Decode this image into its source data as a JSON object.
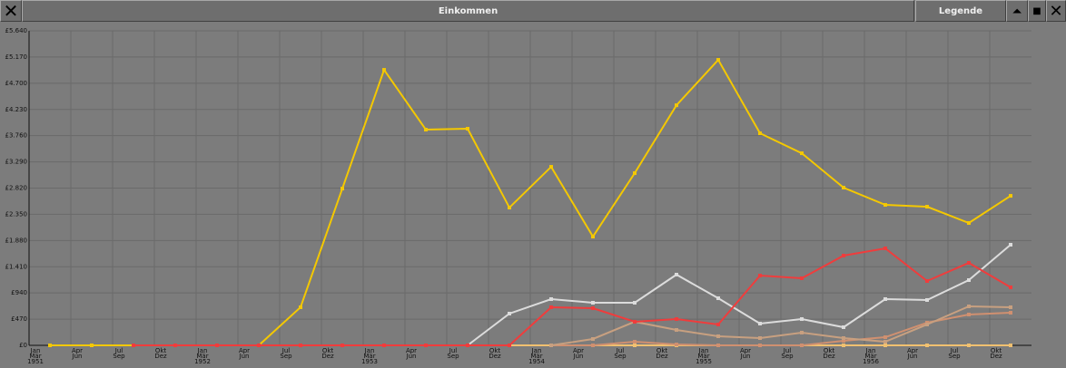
{
  "window": {
    "title": "Einkommen",
    "legend_button": "Legende"
  },
  "chart_data": {
    "type": "line",
    "categories": [
      [
        "Jan",
        "Mär",
        "1951"
      ],
      [
        "Apr",
        "Jun"
      ],
      [
        "Jul",
        "Sep"
      ],
      [
        "Okt",
        "Dez"
      ],
      [
        "Jan",
        "Mär",
        "1952"
      ],
      [
        "Apr",
        "Jun"
      ],
      [
        "Jul",
        "Sep"
      ],
      [
        "Okt",
        "Dez"
      ],
      [
        "Jan",
        "Mär",
        "1953"
      ],
      [
        "Apr",
        "Jun"
      ],
      [
        "Jul",
        "Sep"
      ],
      [
        "Okt",
        "Dez"
      ],
      [
        "Jan",
        "Mär",
        "1954"
      ],
      [
        "Apr",
        "Jun"
      ],
      [
        "Jul",
        "Sep"
      ],
      [
        "Okt",
        "Dez"
      ],
      [
        "Jan",
        "Mär",
        "1955"
      ],
      [
        "Apr",
        "Jun"
      ],
      [
        "Jul",
        "Sep"
      ],
      [
        "Okt",
        "Dez"
      ],
      [
        "Jan",
        "Mär",
        "1956"
      ],
      [
        "Apr",
        "Jun"
      ],
      [
        "Jul",
        "Sep"
      ],
      [
        "Okt",
        "Dez"
      ]
    ],
    "ylim": [
      0,
      5640
    ],
    "yticks": [
      {
        "value": 0,
        "label": "£0"
      },
      {
        "value": 470,
        "label": "£470"
      },
      {
        "value": 940,
        "label": "£940"
      },
      {
        "value": 1410,
        "label": "£1.410"
      },
      {
        "value": 1880,
        "label": "£1.880"
      },
      {
        "value": 2350,
        "label": "£2.350"
      },
      {
        "value": 2820,
        "label": "£2.820"
      },
      {
        "value": 3290,
        "label": "£3.290"
      },
      {
        "value": 3760,
        "label": "£3.760"
      },
      {
        "value": 4230,
        "label": "£4.230"
      },
      {
        "value": 4700,
        "label": "£4.700"
      },
      {
        "value": 5170,
        "label": "£5.170"
      },
      {
        "value": 5640,
        "label": "£5.640"
      }
    ],
    "grid": true,
    "series": [
      {
        "color": "#f0c070",
        "values": [
          0,
          0,
          0,
          0,
          0,
          0,
          0,
          0,
          0,
          0,
          0,
          0,
          0,
          0,
          0,
          0,
          0,
          0,
          0,
          0,
          0,
          0,
          0,
          0
        ]
      },
      {
        "color": "#f4c800",
        "values": [
          0,
          0,
          0,
          0,
          0,
          0,
          683,
          2811,
          4940,
          3868,
          3884,
          2470,
          3201,
          1950,
          3088,
          4306,
          5119,
          3803,
          3445,
          2828,
          2519,
          2486,
          2194,
          2681
        ]
      },
      {
        "color": "#dcdcdc",
        "values": [
          null,
          null,
          null,
          null,
          null,
          null,
          null,
          null,
          null,
          null,
          0,
          569,
          829,
          764,
          764,
          1268,
          845,
          390,
          471,
          325,
          829,
          813,
          1170,
          1804
        ]
      },
      {
        "color": "#d09070",
        "values": [
          null,
          null,
          null,
          null,
          null,
          null,
          null,
          null,
          null,
          null,
          null,
          null,
          0,
          0,
          65,
          16,
          0,
          0,
          0,
          81,
          146,
          406,
          553,
          585
        ]
      },
      {
        "color": "#c8a080",
        "values": [
          null,
          null,
          null,
          null,
          null,
          null,
          null,
          null,
          null,
          null,
          null,
          null,
          0,
          114,
          423,
          276,
          163,
          130,
          228,
          130,
          65,
          374,
          699,
          683
        ]
      },
      {
        "color": "#f03c3c",
        "values": [
          null,
          null,
          0,
          0,
          0,
          0,
          0,
          0,
          0,
          0,
          0,
          0,
          683,
          666,
          423,
          471,
          374,
          1251,
          1203,
          1609,
          1739,
          1154,
          1479,
          1040
        ]
      }
    ]
  }
}
